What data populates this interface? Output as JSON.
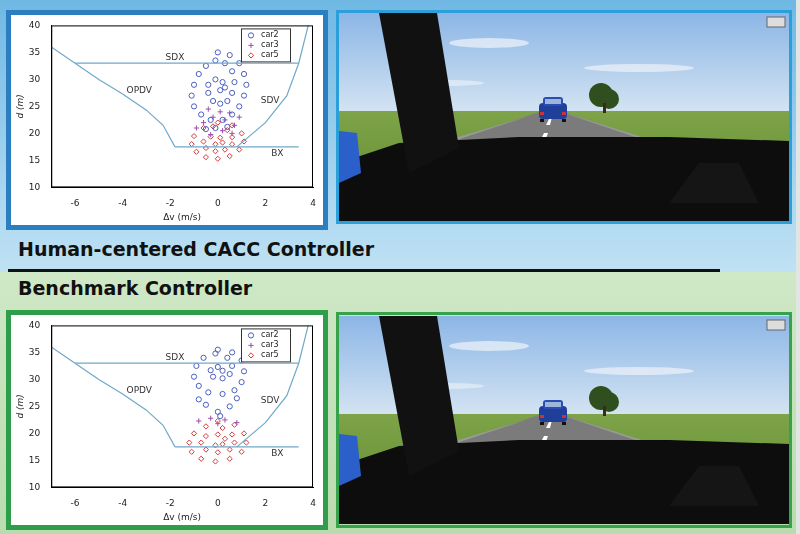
{
  "headings": [
    "Human-centered CACC Controller",
    "Benchmark Controller"
  ],
  "chart_data": [
    {
      "type": "scatter",
      "x_label": "Δv (m/s)",
      "y_label": "d (m)",
      "xlim": [
        -7,
        4
      ],
      "xticks": [
        -6,
        -4,
        -2,
        0,
        2,
        4
      ],
      "ylim": [
        10,
        40
      ],
      "yticks": [
        10,
        15,
        20,
        25,
        30,
        35,
        40
      ],
      "grid": false,
      "legend": "top-right",
      "series": [
        {
          "name": "car2",
          "color": "#4a5fc1",
          "marker": "circle",
          "x": [
            0,
            0.5,
            0.9,
            1.1,
            1.2,
            1.1,
            0.9,
            0.6,
            0.2,
            -0.3,
            -0.7,
            -1,
            -1.1,
            -1,
            -0.8,
            -0.5,
            -0.1,
            0.3,
            0.6,
            0.7,
            0.6,
            0.4,
            0.1,
            -0.2,
            -0.4,
            -0.4,
            -0.1,
            0.2,
            0.3,
            0.1,
            -0.1,
            0.4,
            -0.5
          ],
          "values": [
            35,
            34.5,
            33,
            31,
            29,
            27,
            25,
            23.5,
            22.5,
            22.5,
            23.5,
            25,
            27,
            29,
            31,
            32.5,
            33.5,
            33,
            31.5,
            29.5,
            27.5,
            26,
            25.5,
            26,
            27.5,
            29,
            30,
            29.5,
            28.5,
            28,
            21,
            21.2,
            20.8
          ]
        },
        {
          "name": "car3",
          "color": "#9b4fb0",
          "marker": "plus",
          "x": [
            -0.6,
            -0.2,
            0.3,
            0.7,
            -0.9,
            0.1,
            0.5,
            -0.4,
            0.2,
            -0.3,
            0.6,
            0.9
          ],
          "values": [
            22,
            23,
            22.5,
            21.5,
            21,
            24,
            23.8,
            24.5,
            20.5,
            19.8,
            20,
            23
          ]
        },
        {
          "name": "car5",
          "color": "#d23c3c",
          "marker": "diamond",
          "x": [
            0,
            0.6,
            1,
            1.1,
            0.9,
            0.5,
            0,
            -0.5,
            -0.9,
            -1.1,
            -1,
            -0.6,
            -0.2,
            0.4,
            0.6,
            0.6,
            0.3,
            -0.1,
            -0.5,
            -0.6,
            -0.3,
            0.1,
            0.2,
            -0.1
          ],
          "values": [
            22,
            21.5,
            20,
            18.5,
            17,
            15.8,
            15.3,
            15.6,
            16.6,
            18,
            19.5,
            21,
            21.3,
            20.6,
            19.3,
            18,
            17,
            16.7,
            17.3,
            18.5,
            19.4,
            19.2,
            18.3,
            18
          ]
        }
      ],
      "boundaries": [
        {
          "name": "SDX",
          "color": "#6fa8c8",
          "line_style": "solid",
          "x": [
            -6,
            3.4
          ],
          "values": [
            33,
            33
          ]
        },
        {
          "name": "OPDV",
          "color": "#6fa8c8",
          "line_style": "solid",
          "x": [
            -7,
            -6,
            -5,
            -4,
            -3,
            -2.3,
            -1.8
          ],
          "values": [
            36,
            33,
            30,
            27.3,
            24.3,
            21.5,
            17.5
          ]
        },
        {
          "name": "SDV",
          "color": "#6fa8c8",
          "line_style": "solid",
          "x": [
            0.8,
            2,
            2.9,
            3.4,
            3.8
          ],
          "values": [
            17.5,
            22,
            27,
            33,
            40
          ]
        },
        {
          "name": "BX",
          "color": "#6fa8c8",
          "line_style": "solid",
          "x": [
            -1.8,
            3.4
          ],
          "values": [
            17.5,
            17.5
          ]
        }
      ]
    },
    {
      "type": "scatter",
      "x_label": "Δv (m/s)",
      "y_label": "d (m)",
      "xlim": [
        -7,
        4
      ],
      "xticks": [
        -6,
        -4,
        -2,
        0,
        2,
        4
      ],
      "ylim": [
        10,
        40
      ],
      "yticks": [
        10,
        15,
        20,
        25,
        30,
        35,
        40
      ],
      "grid": false,
      "legend": "top-right",
      "series": [
        {
          "name": "car2",
          "color": "#4a5fc1",
          "marker": "circle",
          "x": [
            0,
            0.6,
            1,
            1.1,
            1,
            0.7,
            0.2,
            -0.4,
            -0.8,
            -1,
            -0.9,
            -0.6,
            -0.1,
            0.4,
            0.6,
            0.5,
            0.2,
            -0.2,
            -0.3,
            0,
            0.2,
            0,
            0.5,
            -0.5,
            0.8,
            -0.8,
            0.1
          ],
          "values": [
            35.5,
            35,
            33.5,
            31.5,
            29.5,
            28,
            27.3,
            27.6,
            28.8,
            30.5,
            32.5,
            34,
            34.8,
            34,
            32.5,
            31,
            30.2,
            30.5,
            31.7,
            32.3,
            31.6,
            24,
            25,
            25.3,
            26.5,
            26.3,
            23.2
          ]
        },
        {
          "name": "car3",
          "color": "#9b4fb0",
          "marker": "plus",
          "x": [
            -0.3,
            0.3,
            0.8,
            -0.8,
            0
          ],
          "values": [
            22.8,
            22.5,
            22,
            22.3,
            21.8
          ]
        },
        {
          "name": "car5",
          "color": "#d23c3c",
          "marker": "diamond",
          "x": [
            0,
            0.7,
            1.1,
            1.2,
            1,
            0.5,
            -0.1,
            -0.7,
            -1.1,
            -1.2,
            -1,
            -0.5,
            0.2,
            0.6,
            0.7,
            0.5,
            0,
            -0.5,
            -0.7,
            -0.5,
            0,
            0.3,
            0.2,
            -0.1
          ],
          "values": [
            22.3,
            21.6,
            20,
            18.3,
            16.6,
            15.3,
            14.8,
            15.3,
            16.6,
            18.3,
            20,
            21.3,
            21,
            19.8,
            18.3,
            17,
            16.5,
            17,
            18.3,
            19.5,
            19.8,
            19,
            18,
            17.8
          ]
        }
      ],
      "boundaries": [
        {
          "name": "SDX",
          "color": "#6fa8c8",
          "line_style": "solid",
          "x": [
            -6,
            3.4
          ],
          "values": [
            33,
            33
          ]
        },
        {
          "name": "OPDV",
          "color": "#6fa8c8",
          "line_style": "solid",
          "x": [
            -7,
            -6,
            -5,
            -4,
            -3,
            -2.3,
            -1.8
          ],
          "values": [
            36,
            33,
            30,
            27.3,
            24.3,
            21.5,
            17.5
          ]
        },
        {
          "name": "SDV",
          "color": "#6fa8c8",
          "line_style": "solid",
          "x": [
            0.8,
            2,
            2.9,
            3.4,
            3.8
          ],
          "values": [
            17.5,
            22,
            27,
            33,
            40
          ]
        },
        {
          "name": "BX",
          "color": "#6fa8c8",
          "line_style": "solid",
          "x": [
            -1.8,
            3.4
          ],
          "values": [
            17.5,
            17.5
          ]
        }
      ]
    }
  ]
}
